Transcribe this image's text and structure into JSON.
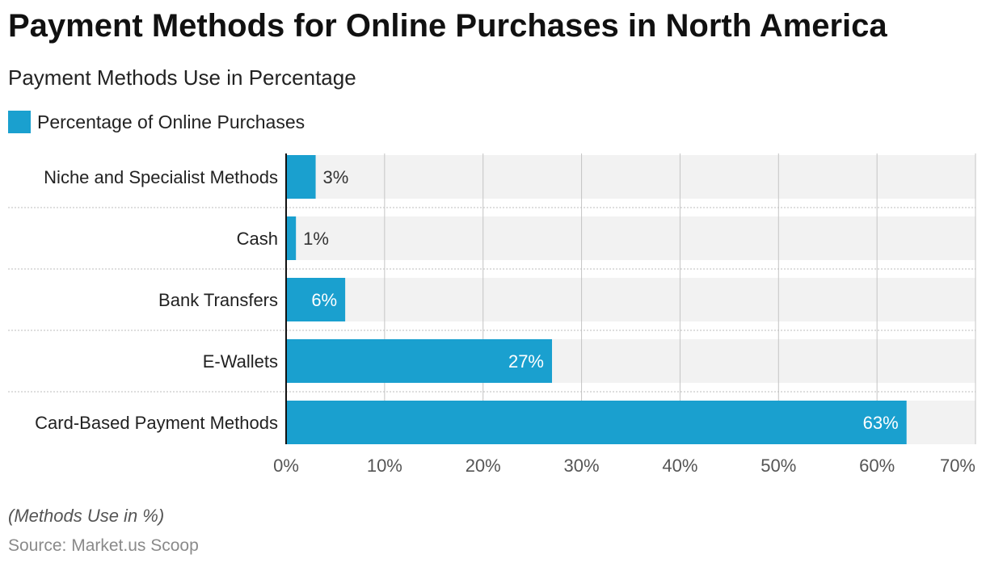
{
  "header": {
    "title": "Payment Methods for Online Purchases in North America",
    "subtitle": "Payment Methods Use in Percentage"
  },
  "legend": {
    "label": "Percentage of Online Purchases",
    "color": "#1aa0cf"
  },
  "footer": {
    "note": "(Methods Use in %)",
    "source": "Source: Market.us Scoop"
  },
  "chart_data": {
    "type": "bar",
    "orientation": "horizontal",
    "categories": [
      "Niche and Specialist Methods",
      "Cash",
      "Bank Transfers",
      "E-Wallets",
      "Card-Based Payment Methods"
    ],
    "series": [
      {
        "name": "Percentage of Online Purchases",
        "values": [
          3,
          1,
          6,
          27,
          63
        ],
        "color": "#1aa0cf"
      }
    ],
    "data_labels": [
      "3%",
      "1%",
      "6%",
      "27%",
      "63%"
    ],
    "xlim": [
      0,
      70
    ],
    "x_ticks": [
      0,
      10,
      20,
      30,
      40,
      50,
      60,
      70
    ],
    "x_tick_labels": [
      "0%",
      "10%",
      "20%",
      "30%",
      "40%",
      "50%",
      "60%",
      "70%"
    ],
    "grid": true,
    "legend_position": "top-left"
  }
}
